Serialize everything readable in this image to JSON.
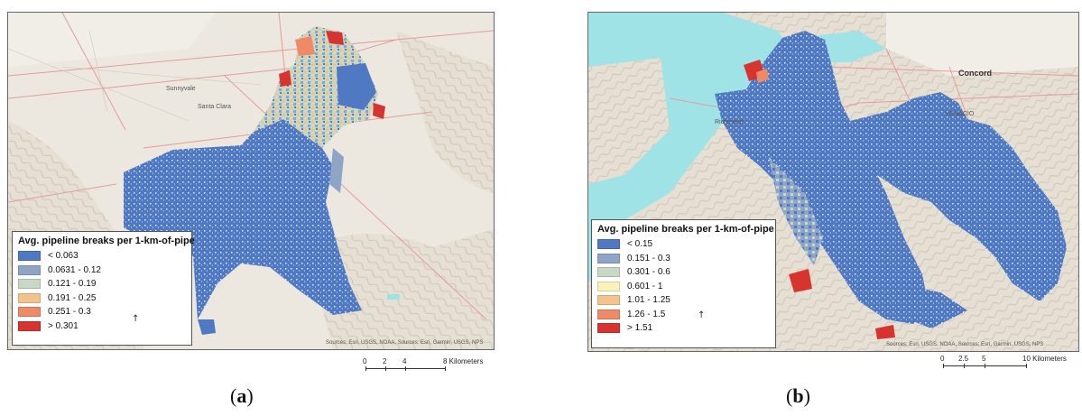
{
  "panels": [
    {
      "id": "a",
      "caption_open": "(",
      "caption_letter": "a",
      "caption_close": ")",
      "legend_title": "Avg. pipeline breaks per 1-km-of-pipe",
      "classes": [
        {
          "label": "< 0.063",
          "color": "#4f79c2"
        },
        {
          "label": "0.0631 - 0.12",
          "color": "#8ea5c8"
        },
        {
          "label": "0.121 - 0.19",
          "color": "#c9d8c4"
        },
        {
          "label": "0.191 - 0.25",
          "color": "#f3c38e"
        },
        {
          "label": "0.251 - 0.3",
          "color": "#ee8a66"
        },
        {
          "label": "> 0.301",
          "color": "#d8342f"
        }
      ],
      "places": [
        "Sunnyvale",
        "Santa Clara"
      ],
      "credits": "Sources: Esri, USGS, NOAA, Sources: Esri, Garmin, USGS, NPS",
      "scale_ticks": [
        "0",
        "2",
        "4",
        "8 Kilometers"
      ]
    },
    {
      "id": "b",
      "caption_open": "(",
      "caption_letter": "b",
      "caption_close": ")",
      "legend_title": "Avg. pipeline breaks per 1-km-of-pipe",
      "classes": [
        {
          "label": "< 0.15",
          "color": "#4f79c2"
        },
        {
          "label": "0.151 - 0.3",
          "color": "#8ea5c8"
        },
        {
          "label": "0.301 - 0.6",
          "color": "#c9d8c4"
        },
        {
          "label": "0.601 - 1",
          "color": "#fbf2b8"
        },
        {
          "label": "1.01 - 1.25",
          "color": "#f3c38e"
        },
        {
          "label": "1.26 - 1.5",
          "color": "#ee8a66"
        },
        {
          "label": "> 1.51",
          "color": "#d8342f"
        }
      ],
      "places": [
        "Concord",
        "Richmond",
        "YGNACIO"
      ],
      "credits": "Sources: Esri, USGS, NOAA, Sources: Esri, Garmin, USGS, NPS",
      "scale_ticks": [
        "0",
        "2.5",
        "5",
        "10 Kilometers"
      ]
    }
  ],
  "colors": {
    "terrain": "#e9e4da",
    "water": "#9fe3e6",
    "road": "#e79a9a"
  }
}
